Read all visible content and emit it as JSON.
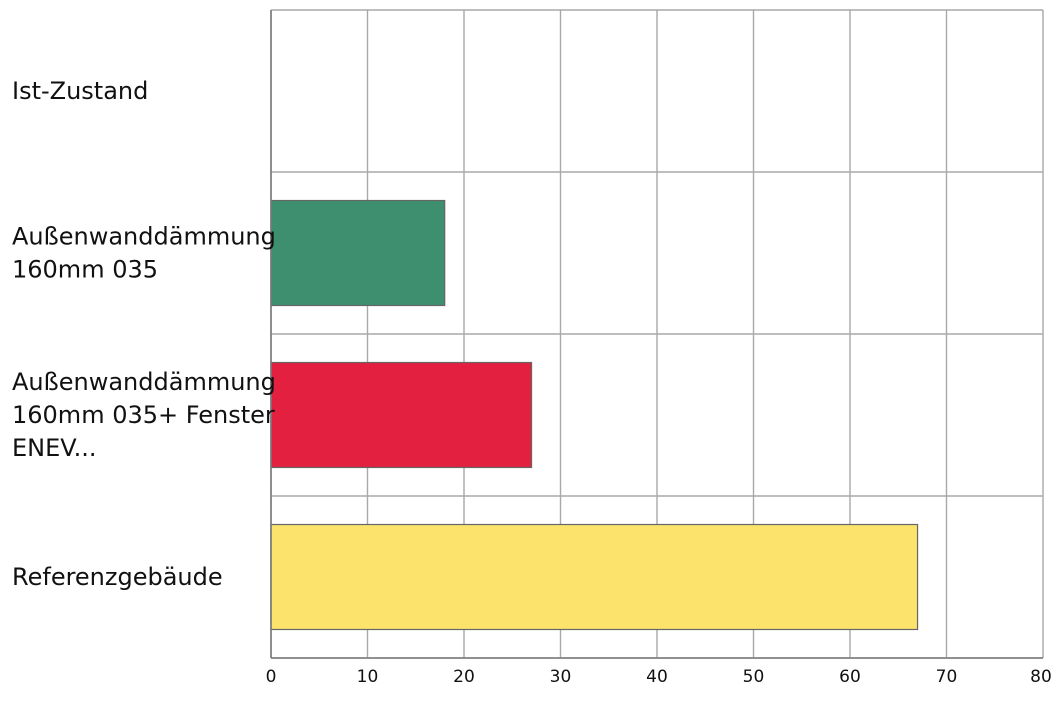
{
  "chart_data": {
    "type": "bar",
    "orientation": "horizontal",
    "title": "",
    "xlabel": "",
    "ylabel": "",
    "xlim": [
      0,
      80
    ],
    "x_ticks": [
      0,
      10,
      20,
      30,
      40,
      50,
      60,
      70,
      80
    ],
    "grid": true,
    "legend": "none",
    "categories": [
      {
        "label_lines": [
          "Ist-Zustand"
        ],
        "value": 0,
        "color": ""
      },
      {
        "label_lines": [
          "Außenwanddämmung",
          "160mm 035"
        ],
        "value": 18,
        "color": "#3d8f70"
      },
      {
        "label_lines": [
          "Außenwanddämmung",
          "160mm 035+ Fenster",
          "ENEV..."
        ],
        "value": 27,
        "color": "#e3203f"
      },
      {
        "label_lines": [
          "Referenzgebäude"
        ],
        "value": 67,
        "color": "#fbe36c"
      }
    ]
  }
}
